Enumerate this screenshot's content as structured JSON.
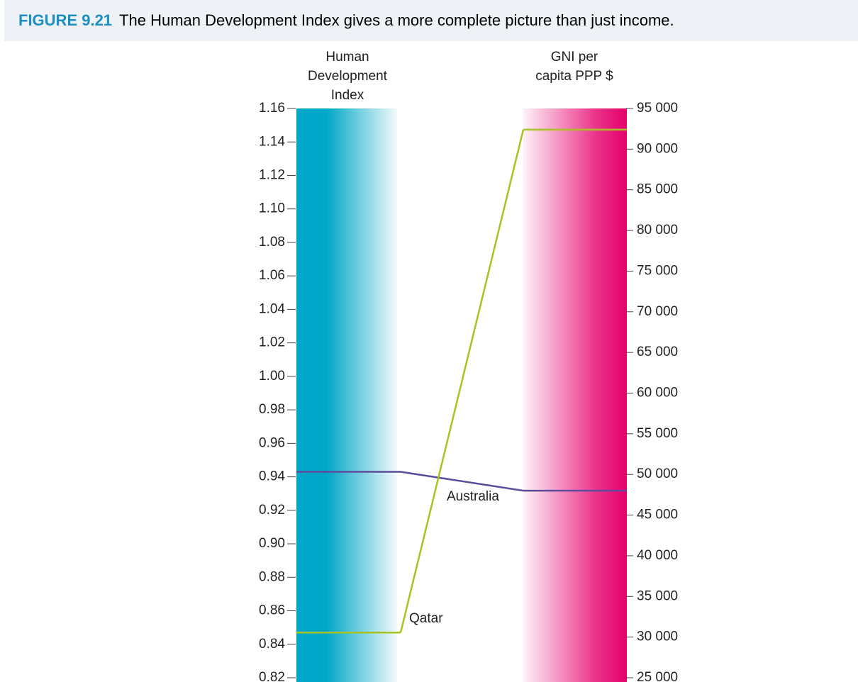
{
  "figure": {
    "label": "FIGURE 9.21",
    "caption": "The Human Development Index gives a more complete picture than just income."
  },
  "chart_data": {
    "type": "parallel",
    "axes": [
      {
        "label": "Human Development Index",
        "color": "#00a7c8",
        "ylim": [
          0.82,
          1.16
        ],
        "yticks": [
          0.82,
          0.84,
          0.86,
          0.88,
          {
            "value": 0.9,
            "label": "0.90"
          },
          0.92,
          0.94,
          0.96,
          0.98,
          {
            "value": 1,
            "label": "1.00"
          },
          1.02,
          1.04,
          1.06,
          1.08,
          {
            "value": 1.1,
            "label": "1.10"
          },
          1.12,
          1.14,
          1.16
        ]
      },
      {
        "label": "GNI per capita PPP $",
        "color": "#e5006d",
        "ylim": [
          25000,
          95000
        ],
        "yticks": [
          {
            "value": 25000,
            "label": "25 000"
          },
          {
            "value": 30000,
            "label": "30 000"
          },
          {
            "value": 35000,
            "label": "35 000"
          },
          {
            "value": 40000,
            "label": "40 000"
          },
          {
            "value": 45000,
            "label": "45 000"
          },
          {
            "value": 50000,
            "label": "50 000"
          },
          {
            "value": 55000,
            "label": "55 000"
          },
          {
            "value": 60000,
            "label": "60 000"
          },
          {
            "value": 65000,
            "label": "65 000"
          },
          {
            "value": 70000,
            "label": "70 000"
          },
          {
            "value": 75000,
            "label": "75 000"
          },
          {
            "value": 80000,
            "label": "80 000"
          },
          {
            "value": 85000,
            "label": "85 000"
          },
          {
            "value": 90000,
            "label": "90 000"
          },
          {
            "value": 95000,
            "label": "95 000"
          }
        ]
      }
    ],
    "series": [
      {
        "name": "Australia",
        "color": "#5e4b9c",
        "values": [
          0.943,
          48000
        ]
      },
      {
        "name": "Qatar",
        "color": "#a9c31e",
        "values": [
          0.847,
          92400
        ]
      }
    ]
  }
}
